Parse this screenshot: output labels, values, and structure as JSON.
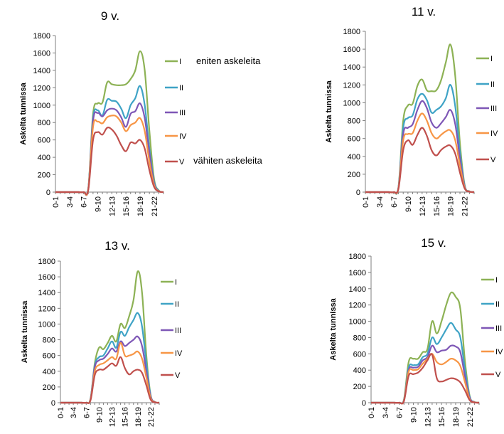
{
  "annotations": {
    "top": "eniten askeleita",
    "bottom": "vähiten askeleita"
  },
  "chart_data": [
    {
      "type": "line",
      "title": "9 v.",
      "xlabel": "",
      "ylabel": "Askelta tunnissa",
      "ylim": [
        0,
        1800
      ],
      "yticks": [
        0,
        200,
        400,
        600,
        800,
        1000,
        1200,
        1400,
        1600,
        1800
      ],
      "x_tick_labels": [
        "0-1",
        "3-4",
        "6-7",
        "9-10",
        "12-13",
        "15-16",
        "18-19",
        "21-22"
      ],
      "x_tick_positions": [
        0,
        3,
        6,
        9,
        12,
        15,
        18,
        21
      ],
      "hours": [
        0,
        1,
        2,
        3,
        4,
        5,
        6,
        7,
        8,
        9,
        10,
        11,
        12,
        13,
        14,
        15,
        16,
        17,
        18,
        19,
        20,
        21,
        22,
        23
      ],
      "legend_position": "right",
      "grid": false,
      "series": [
        {
          "name": "I",
          "color": "#8DB255",
          "values": [
            0,
            0,
            0,
            0,
            0,
            0,
            0,
            50,
            900,
            1020,
            1030,
            1260,
            1240,
            1230,
            1230,
            1240,
            1300,
            1400,
            1620,
            1400,
            700,
            150,
            20,
            0
          ]
        },
        {
          "name": "II",
          "color": "#3FA3C6",
          "values": [
            0,
            0,
            0,
            0,
            0,
            0,
            0,
            45,
            850,
            940,
            880,
            1060,
            1050,
            1040,
            960,
            850,
            1000,
            1080,
            1220,
            1000,
            500,
            120,
            15,
            0
          ]
        },
        {
          "name": "III",
          "color": "#7E57B6",
          "values": [
            0,
            0,
            0,
            0,
            0,
            0,
            0,
            40,
            820,
            910,
            870,
            940,
            960,
            940,
            860,
            750,
            900,
            930,
            1020,
            850,
            450,
            100,
            12,
            0
          ]
        },
        {
          "name": "IV",
          "color": "#F79646",
          "values": [
            0,
            0,
            0,
            0,
            0,
            0,
            0,
            35,
            750,
            810,
            790,
            860,
            880,
            870,
            800,
            700,
            770,
            800,
            850,
            700,
            350,
            80,
            10,
            0
          ]
        },
        {
          "name": "V",
          "color": "#C0504D",
          "values": [
            0,
            0,
            0,
            0,
            0,
            0,
            0,
            30,
            600,
            690,
            660,
            740,
            720,
            650,
            540,
            470,
            570,
            560,
            600,
            500,
            250,
            60,
            8,
            0
          ]
        }
      ]
    },
    {
      "type": "line",
      "title": "11 v.",
      "xlabel": "",
      "ylabel": "Askelta tunnissa",
      "ylim": [
        0,
        1800
      ],
      "yticks": [
        0,
        200,
        400,
        600,
        800,
        1000,
        1200,
        1400,
        1600,
        1800
      ],
      "x_tick_labels": [
        "0-1",
        "3-4",
        "6-7",
        "9-10",
        "12-13",
        "15-16",
        "18-19",
        "21-22"
      ],
      "x_tick_positions": [
        0,
        3,
        6,
        9,
        12,
        15,
        18,
        21
      ],
      "hours": [
        0,
        1,
        2,
        3,
        4,
        5,
        6,
        7,
        8,
        9,
        10,
        11,
        12,
        13,
        14,
        15,
        16,
        17,
        18,
        19,
        20,
        21,
        22,
        23
      ],
      "legend_position": "right",
      "grid": false,
      "series": [
        {
          "name": "I",
          "color": "#8DB255",
          "values": [
            0,
            0,
            0,
            0,
            0,
            0,
            0,
            60,
            800,
            970,
            990,
            1190,
            1260,
            1140,
            1130,
            1140,
            1250,
            1450,
            1650,
            1300,
            550,
            80,
            10,
            0
          ]
        },
        {
          "name": "II",
          "color": "#3FA3C6",
          "values": [
            0,
            0,
            0,
            0,
            0,
            0,
            0,
            55,
            720,
            830,
            860,
            1040,
            1100,
            1030,
            890,
            920,
            960,
            1050,
            1200,
            960,
            450,
            70,
            8,
            0
          ]
        },
        {
          "name": "III",
          "color": "#7E57B6",
          "values": [
            0,
            0,
            0,
            0,
            0,
            0,
            0,
            50,
            650,
            720,
            760,
            920,
            1020,
            940,
            780,
            720,
            770,
            840,
            920,
            760,
            380,
            60,
            7,
            0
          ]
        },
        {
          "name": "IV",
          "color": "#F79646",
          "values": [
            0,
            0,
            0,
            0,
            0,
            0,
            0,
            45,
            580,
            650,
            660,
            800,
            880,
            800,
            660,
            600,
            640,
            680,
            690,
            580,
            300,
            50,
            6,
            0
          ]
        },
        {
          "name": "V",
          "color": "#C0504D",
          "values": [
            0,
            0,
            0,
            0,
            0,
            0,
            0,
            40,
            470,
            580,
            530,
            640,
            720,
            630,
            470,
            410,
            470,
            510,
            520,
            430,
            220,
            40,
            5,
            0
          ]
        }
      ]
    },
    {
      "type": "line",
      "title": "13 v.",
      "xlabel": "",
      "ylabel": "Askelta tunnissa",
      "ylim": [
        0,
        1800
      ],
      "yticks": [
        0,
        200,
        400,
        600,
        800,
        1000,
        1200,
        1400,
        1600,
        1800
      ],
      "x_tick_labels": [
        "0-1",
        "3-4",
        "6-7",
        "9-10",
        "12-13",
        "15-16",
        "18-19",
        "21-22"
      ],
      "x_tick_positions": [
        0,
        3,
        6,
        9,
        12,
        15,
        18,
        21
      ],
      "hours": [
        0,
        1,
        2,
        3,
        4,
        5,
        6,
        7,
        8,
        9,
        10,
        11,
        12,
        13,
        14,
        15,
        16,
        17,
        18,
        19,
        20,
        21,
        22,
        23
      ],
      "legend_position": "right",
      "grid": false,
      "series": [
        {
          "name": "I",
          "color": "#8DB255",
          "values": [
            0,
            0,
            0,
            0,
            0,
            0,
            0,
            50,
            500,
            700,
            680,
            760,
            850,
            780,
            1000,
            950,
            1100,
            1300,
            1670,
            1400,
            600,
            100,
            10,
            0
          ]
        },
        {
          "name": "II",
          "color": "#3FA3C6",
          "values": [
            0,
            0,
            0,
            0,
            0,
            0,
            0,
            45,
            470,
            580,
            600,
            690,
            780,
            700,
            900,
            850,
            960,
            1050,
            1140,
            970,
            500,
            90,
            8,
            0
          ]
        },
        {
          "name": "III",
          "color": "#7E57B6",
          "values": [
            0,
            0,
            0,
            0,
            0,
            0,
            0,
            40,
            450,
            540,
            560,
            620,
            690,
            650,
            780,
            720,
            760,
            800,
            840,
            720,
            400,
            80,
            7,
            0
          ]
        },
        {
          "name": "IV",
          "color": "#F79646",
          "values": [
            0,
            0,
            0,
            0,
            0,
            0,
            0,
            35,
            400,
            480,
            500,
            540,
            580,
            560,
            760,
            600,
            600,
            620,
            650,
            560,
            320,
            60,
            6,
            0
          ]
        },
        {
          "name": "V",
          "color": "#C0504D",
          "values": [
            0,
            0,
            0,
            0,
            0,
            0,
            0,
            30,
            350,
            420,
            420,
            460,
            500,
            470,
            580,
            440,
            360,
            400,
            420,
            380,
            220,
            40,
            5,
            0
          ]
        }
      ]
    },
    {
      "type": "line",
      "title": "15 v.",
      "xlabel": "",
      "ylabel": "Askelta tunnissa",
      "ylim": [
        0,
        1800
      ],
      "yticks": [
        0,
        200,
        400,
        600,
        800,
        1000,
        1200,
        1400,
        1600,
        1800
      ],
      "x_tick_labels": [
        "0-1",
        "3-4",
        "6-7",
        "9-10",
        "12-13",
        "15-16",
        "18-19",
        "21-22"
      ],
      "x_tick_positions": [
        0,
        3,
        6,
        9,
        12,
        15,
        18,
        21
      ],
      "hours": [
        0,
        1,
        2,
        3,
        4,
        5,
        6,
        7,
        8,
        9,
        10,
        11,
        12,
        13,
        14,
        15,
        16,
        17,
        18,
        19,
        20,
        21,
        22,
        23
      ],
      "legend_position": "right",
      "grid": false,
      "series": [
        {
          "name": "I",
          "color": "#8DB255",
          "values": [
            0,
            0,
            0,
            0,
            0,
            0,
            0,
            40,
            500,
            540,
            540,
            620,
            660,
            1000,
            850,
            1000,
            1200,
            1350,
            1300,
            1150,
            500,
            80,
            10,
            0
          ]
        },
        {
          "name": "II",
          "color": "#3FA3C6",
          "values": [
            0,
            0,
            0,
            0,
            0,
            0,
            0,
            35,
            430,
            460,
            470,
            560,
            600,
            800,
            720,
            800,
            900,
            980,
            900,
            800,
            400,
            70,
            8,
            0
          ]
        },
        {
          "name": "III",
          "color": "#7E57B6",
          "values": [
            0,
            0,
            0,
            0,
            0,
            0,
            0,
            30,
            400,
            430,
            440,
            520,
            560,
            700,
            620,
            640,
            650,
            700,
            690,
            620,
            320,
            60,
            6,
            0
          ]
        },
        {
          "name": "IV",
          "color": "#F79646",
          "values": [
            0,
            0,
            0,
            0,
            0,
            0,
            0,
            25,
            380,
            400,
            410,
            480,
            540,
            600,
            500,
            470,
            500,
            540,
            520,
            450,
            250,
            40,
            5,
            0
          ]
        },
        {
          "name": "V",
          "color": "#C0504D",
          "values": [
            0,
            0,
            0,
            0,
            0,
            0,
            0,
            20,
            330,
            350,
            370,
            430,
            520,
            590,
            300,
            260,
            280,
            300,
            290,
            250,
            150,
            30,
            3,
            0
          ]
        }
      ]
    }
  ]
}
